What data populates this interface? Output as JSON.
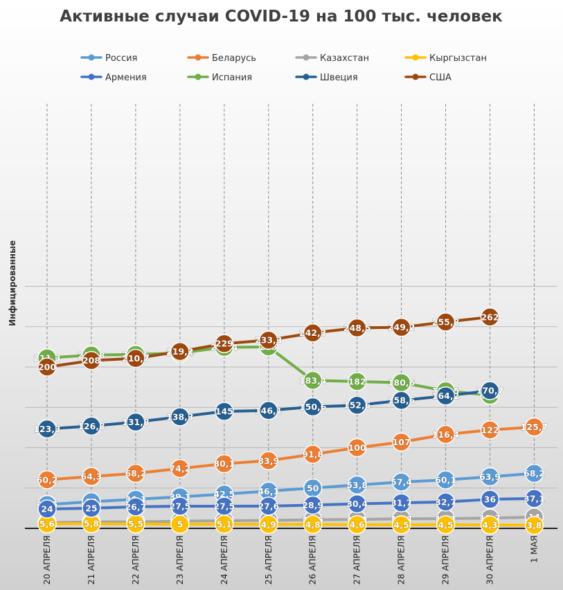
{
  "chart_data": {
    "type": "line",
    "title": "Активные случаи COVID-19 на 100 тыс. человек",
    "xlabel": "",
    "ylabel": "Инфицированные",
    "ylim": [
      0,
      300
    ],
    "grid": true,
    "legend_position": "top",
    "categories": [
      "20 АПРЕЛЯ",
      "21 АПРЕЛЯ",
      "22 АПРЕЛЯ",
      "23 АПРЕЛЯ",
      "24 АПРЕЛЯ",
      "25 АПРЕЛЯ",
      "26 АПРЕЛЯ",
      "27 АПРЕЛЯ",
      "28 АПРЕЛЯ",
      "29 АПРЕЛЯ",
      "30 АПРЕЛЯ",
      "1 МАЯ"
    ],
    "series": [
      {
        "name": "Россия",
        "color": "#5B9BD5",
        "values": [
          29.5,
          33,
          36.1,
          39.1,
          42.5,
          46.1,
          50,
          53.8,
          57.4,
          60.1,
          63.9,
          68.2
        ],
        "labels": [
          "29,5",
          "33",
          "36,1",
          "39,1",
          "42,5",
          "46,1",
          "50",
          "53,8",
          "57,4",
          "60,1",
          "63,9",
          "68,2"
        ]
      },
      {
        "name": "Беларусь",
        "color": "#ED7D31",
        "values": [
          60.2,
          64.3,
          68.2,
          74.2,
          80.1,
          83.9,
          91.8,
          100,
          107,
          116.4,
          122,
          125.7
        ],
        "labels": [
          "60,2",
          "64,3",
          "68,2",
          "74,2",
          "80,1",
          "83,9",
          "91,8",
          "100",
          "107",
          "116,4",
          "122",
          "125,7"
        ]
      },
      {
        "name": "Казахстан",
        "color": "#A5A5A5",
        "values": [
          7,
          8,
          8.1,
          8.9,
          9.4,
          9.9,
          10.6,
          11.1,
          11.8,
          12.1,
          12.7,
          14
        ],
        "labels": [
          "7",
          "8",
          "8,1",
          "8,9",
          "9,4",
          "9,9",
          "10,6",
          "11,1",
          "11,8",
          "12,1",
          "12,7",
          "14"
        ]
      },
      {
        "name": "Кыргызстан",
        "color": "#FFC000",
        "values": [
          5.6,
          5.8,
          5.5,
          5,
          5.1,
          4.9,
          4.8,
          4.6,
          4.5,
          4.5,
          4.3,
          3.8
        ],
        "labels": [
          "5,6",
          "5,8",
          "5,5",
          "5",
          "5,1",
          "4,9",
          "4,8",
          "4,6",
          "4,5",
          "4,5",
          "4,3",
          "3,8"
        ]
      },
      {
        "name": "Армения",
        "color": "#4472C4",
        "values": [
          24,
          25,
          26.7,
          27.5,
          27.5,
          27.6,
          28.9,
          30.4,
          31.7,
          32.7,
          36,
          37.1
        ],
        "labels": [
          "24",
          "25",
          "26,7",
          "27,5",
          "27,5",
          "27,6",
          "28,9",
          "30,4",
          "31,7",
          "32,7",
          "36",
          "37,1"
        ]
      },
      {
        "name": "Испания",
        "color": "#70AD47",
        "values": [
          211.3,
          214.8,
          215.6,
          217.4,
          224.4,
          225,
          183.4,
          182,
          180.6,
          170.5,
          165,
          null
        ],
        "labels": [
          "211,3",
          "214,8",
          "215,6",
          "217,4",
          "224,4",
          "225",
          "183,4",
          "182",
          "180,6",
          "170,5",
          "165",
          ""
        ]
      },
      {
        "name": "Швеция",
        "color": "#255E91",
        "values": [
          123.3,
          126.8,
          131.8,
          138.3,
          145,
          146.1,
          150.6,
          152.6,
          158.6,
          164.2,
          170.7,
          null
        ],
        "labels": [
          "123,3",
          "126,8",
          "131,8",
          "138,3",
          "145",
          "146,1",
          "150,6",
          "152,6",
          "158,6",
          "164,2",
          "170,7",
          ""
        ]
      },
      {
        "name": "США",
        "color": "#9E480E",
        "values": [
          200,
          208,
          210.7,
          219.2,
          229,
          233.3,
          242.3,
          248.5,
          249.2,
          255.8,
          262,
          null
        ],
        "labels": [
          "200",
          "208",
          "210,7",
          "219,2",
          "229",
          "233,3",
          "242,3",
          "248,5",
          "249,2",
          "255,8",
          "262",
          ""
        ]
      }
    ]
  }
}
